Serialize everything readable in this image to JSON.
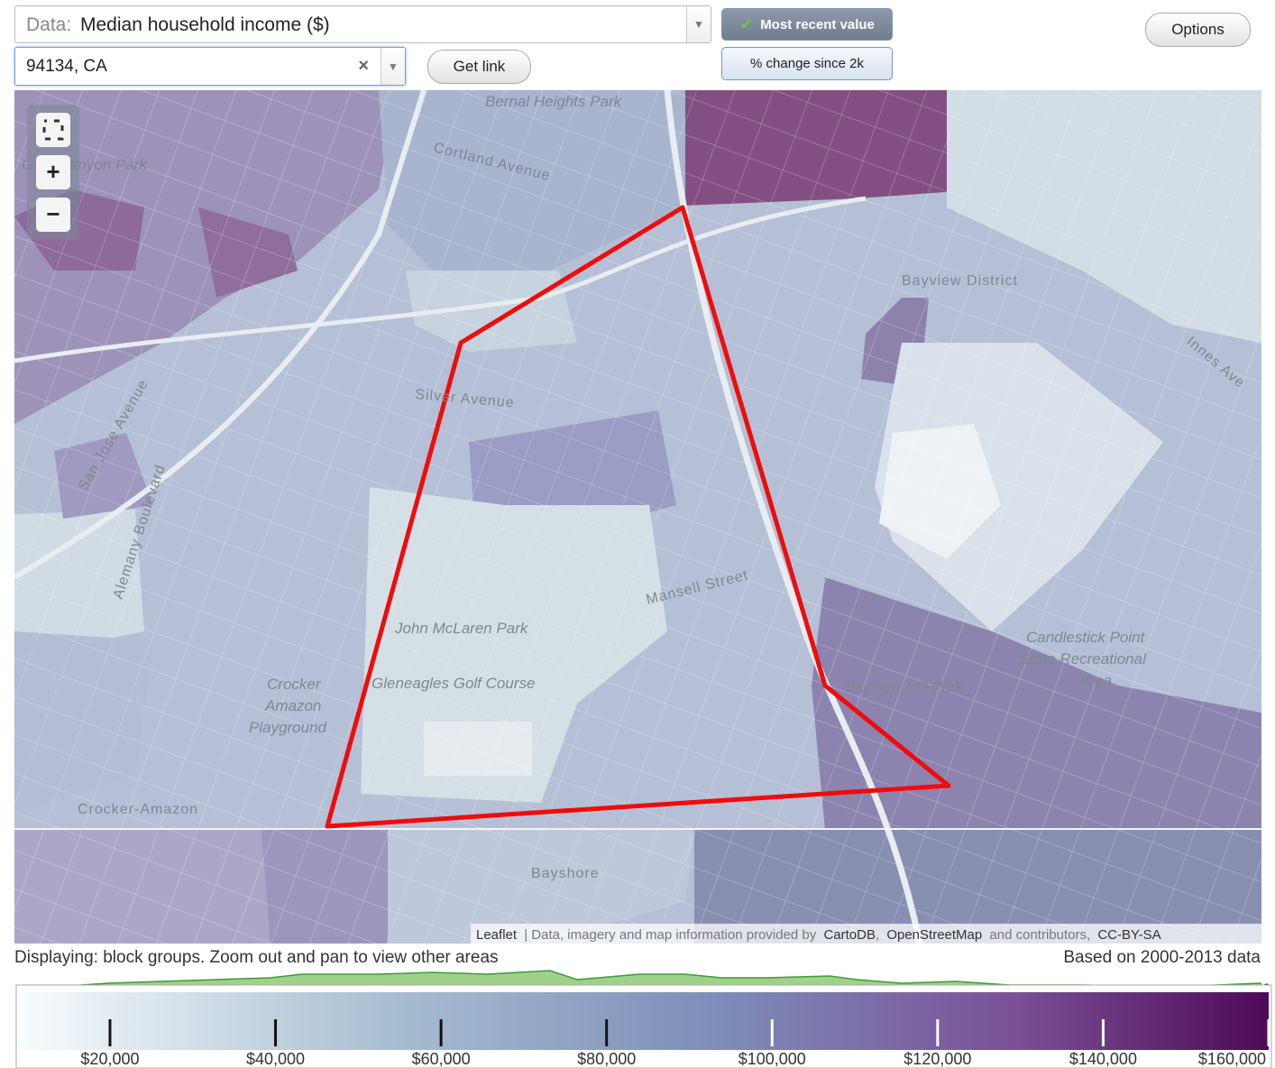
{
  "header": {
    "data_prefix": "Data:",
    "data_select": "Median household income ($)",
    "location": "94134, CA",
    "clear": "×",
    "get_link": "Get link",
    "most_recent": "Most recent value",
    "percent_change": "% change since 2k",
    "options": "Options"
  },
  "map": {
    "labels": [
      "Bernal Heights Park",
      "Glen Canyon Park",
      "Cortland Avenue",
      "Bayview District",
      "Innes Ave",
      "Silver Avenue",
      "San Jose Avenue",
      "Alemany Boulevard",
      "John McLaren Park",
      "Gleneagles Golf Course",
      "Mansell Street",
      "Crocker",
      "Amazon",
      "Playground",
      "Bayview Hill Park",
      "Candlestick Point",
      "State Recreational",
      "Area",
      "Crocker-Amazon",
      "Bayshore"
    ],
    "zoom_in": "+",
    "zoom_out": "−",
    "attribution": {
      "leaflet": "Leaflet",
      "text": "| Data, imagery and map information provided by",
      "cartodb": "CartoDB",
      "osm": "OpenStreetMap",
      "and": "and contributors,",
      "license": "CC-BY-SA"
    }
  },
  "footer": {
    "displaying": "Displaying: block groups. Zoom out and pan to view other areas",
    "based_on": "Based on 2000-2013 data",
    "help": "?"
  },
  "legend": {
    "xlim": [
      9000,
      160000
    ],
    "xticks": [
      {
        "value": 20000,
        "label": "$20,000"
      },
      {
        "value": 40000,
        "label": "$40,000"
      },
      {
        "value": 60000,
        "label": "$60,000"
      },
      {
        "value": 80000,
        "label": "$80,000"
      },
      {
        "value": 100000,
        "label": "$100,000"
      },
      {
        "value": 120000,
        "label": "$120,000"
      },
      {
        "value": 140000,
        "label": "$140,000"
      },
      {
        "value": 160000,
        "label": "$160,000"
      }
    ]
  }
}
